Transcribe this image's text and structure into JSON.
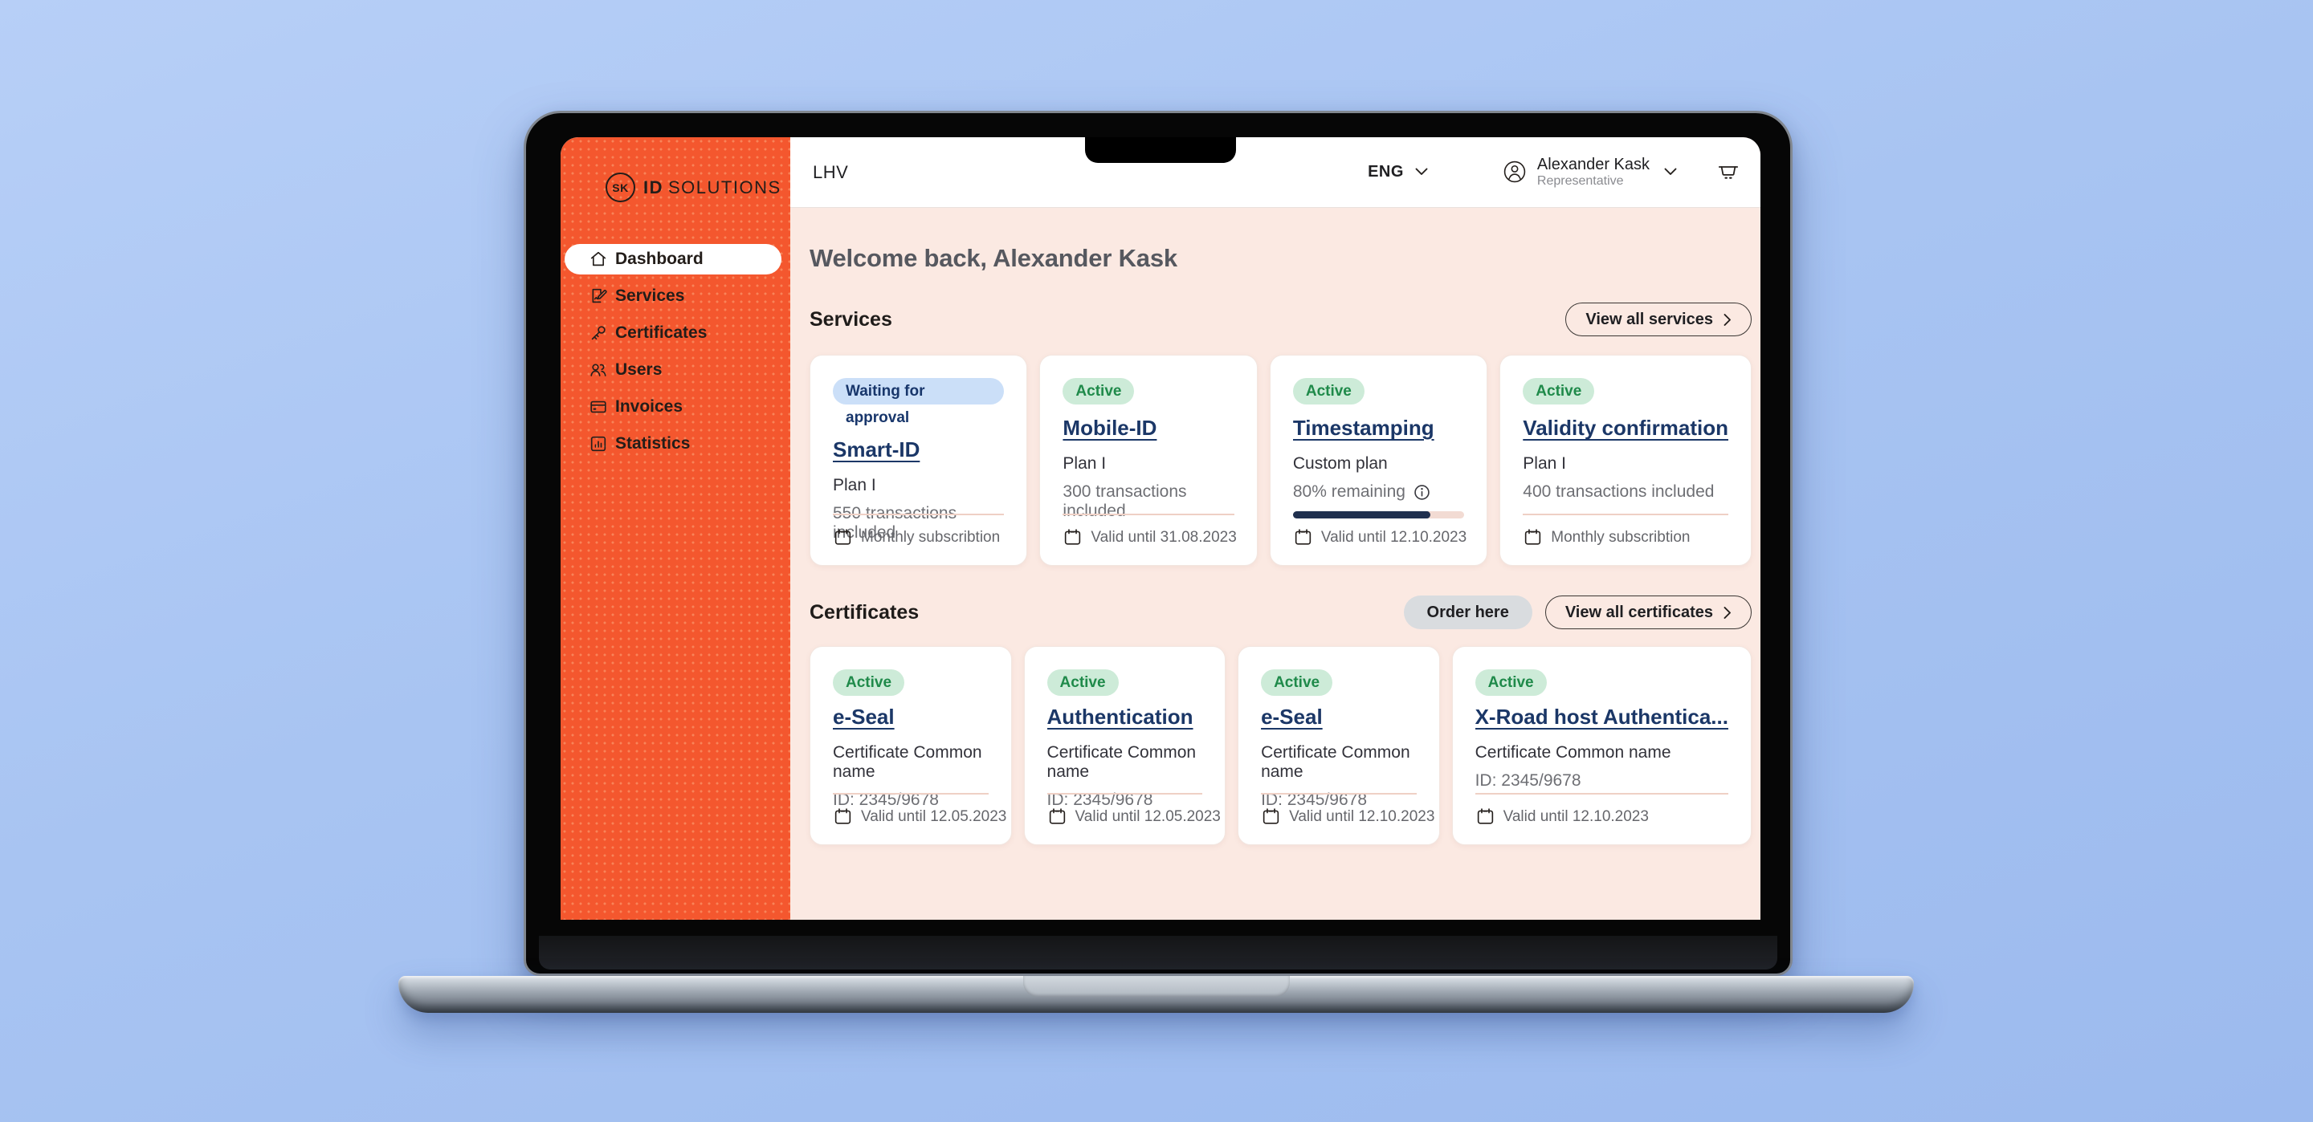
{
  "sidebar": {
    "logo": {
      "circle": "SK",
      "bold": "ID",
      "rest": "SOLUTIONS"
    },
    "items": [
      {
        "label": "Dashboard"
      },
      {
        "label": "Services"
      },
      {
        "label": "Certificates"
      },
      {
        "label": "Users"
      },
      {
        "label": "Invoices"
      },
      {
        "label": "Statistics"
      }
    ]
  },
  "topbar": {
    "brand": "LHV",
    "language": "ENG",
    "user": {
      "name": "Alexander Kask",
      "role": "Representative"
    }
  },
  "main": {
    "welcome": "Welcome back, Alexander Kask",
    "services": {
      "title": "Services",
      "view_all": "View all services",
      "cards": [
        {
          "badge": "Waiting for approval",
          "title": "Smart-ID",
          "line1": "Plan I",
          "line2": "550 transactions included",
          "footer": "Monthly subscribtion"
        },
        {
          "badge": "Active",
          "title": "Mobile-ID",
          "line1": "Plan I",
          "line2": "300 transactions included",
          "footer": "Valid until 31.08.2023"
        },
        {
          "badge": "Active",
          "title": "Timestamping",
          "line1": "Custom plan",
          "line2": "80% remaining",
          "progress_percent": 80,
          "footer": "Valid until 12.10.2023"
        },
        {
          "badge": "Active",
          "title": "Validity confirmation",
          "line1": "Plan I",
          "line2": "400 transactions included",
          "footer": "Monthly subscribtion"
        }
      ]
    },
    "certificates": {
      "title": "Certificates",
      "order_here": "Order here",
      "view_all": "View all certificates",
      "cards": [
        {
          "badge": "Active",
          "title": "e-Seal",
          "line1": "Certificate Common name",
          "line2": "ID: 2345/9678",
          "footer": "Valid until 12.05.2023"
        },
        {
          "badge": "Active",
          "title": "Authentication",
          "line1": "Certificate Common name",
          "line2": "ID: 2345/9678",
          "footer": "Valid until 12.05.2023"
        },
        {
          "badge": "Active",
          "title": "e-Seal",
          "line1": "Certificate Common name",
          "line2": "ID: 2345/9678",
          "footer": "Valid until 12.10.2023"
        },
        {
          "badge": "Active",
          "title": "X-Road host Authentica...",
          "line1": "Certificate Common name",
          "line2": "ID: 2345/9678",
          "footer": "Valid until 12.10.2023"
        }
      ]
    }
  },
  "colors": {
    "accent_orange": "#F4572E",
    "content_background": "#FBE9E2",
    "desktop_background": "#A8C4F2",
    "badge_active_bg": "#CDEBD8",
    "badge_active_text": "#1F8A4A",
    "badge_waiting_bg": "#CBDFF8",
    "badge_waiting_text": "#18366B",
    "link_navy": "#1B3767",
    "progress_fill": "#20304F",
    "progress_track": "#F2DBD3"
  }
}
